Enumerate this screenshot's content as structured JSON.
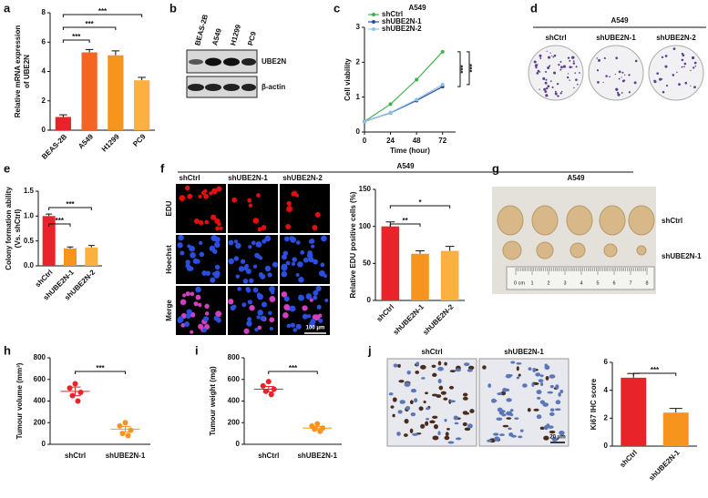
{
  "panel_labels": [
    "a",
    "b",
    "c",
    "d",
    "e",
    "f",
    "g",
    "h",
    "i",
    "j"
  ],
  "blot": {
    "lanes": [
      "BEAS-2B",
      "A549",
      "H1299",
      "PC9"
    ],
    "bands": [
      "UBE2N",
      "β-actin"
    ]
  },
  "colony": {
    "cell_line": "A549",
    "groups": [
      "shCtrl",
      "shUBE2N-1",
      "shUBE2N-2"
    ]
  },
  "edu": {
    "cell_line": "A549",
    "groups": [
      "shCtrl",
      "shUBE2N-1",
      "shUBE2N-2"
    ],
    "stains": [
      "EDU",
      "Hoechst",
      "Merge"
    ],
    "scale_bar": "100 μm"
  },
  "tumours": {
    "cell_line": "A549",
    "groups": [
      "shCtrl",
      "shUBE2N-1"
    ],
    "ruler": [
      "0 cm",
      "1",
      "2",
      "3",
      "4",
      "5",
      "6",
      "7",
      "8"
    ]
  },
  "ihc": {
    "groups": [
      "shCtrl",
      "shUBE2N-1"
    ],
    "scale_bar": "20 μm"
  },
  "chart_data": [
    {
      "type": "bar",
      "ylabel": [
        "Relative mRNA expression",
        "of UBE2N"
      ],
      "categories": [
        "BEAS-2B",
        "A549",
        "H1299",
        "PC9"
      ],
      "values": [
        0.9,
        5.3,
        5.1,
        3.4
      ],
      "errors": [
        0.15,
        0.2,
        0.3,
        0.2
      ],
      "colors": [
        "#e8232a",
        "#f26522",
        "#f7941d",
        "#fbb040"
      ],
      "ylim": [
        0,
        8
      ],
      "yticks": [
        0,
        2,
        4,
        6,
        8
      ],
      "annotations": [
        "***",
        "***",
        "***"
      ]
    },
    {
      "type": "line",
      "title": "A549",
      "xlabel": "Time (hour)",
      "ylabel": "Cell viability",
      "x": [
        0,
        24,
        48,
        72
      ],
      "series": [
        {
          "name": "shCtrl",
          "color": "#3cb44b",
          "values": [
            0.3,
            0.8,
            1.5,
            2.3
          ]
        },
        {
          "name": "shUBE2N-1",
          "color": "#2b4c9b",
          "values": [
            0.3,
            0.55,
            0.9,
            1.3
          ]
        },
        {
          "name": "shUBE2N-2",
          "color": "#8cc3e8",
          "values": [
            0.3,
            0.56,
            0.93,
            1.36
          ]
        }
      ],
      "xlim": [
        0,
        84
      ],
      "xticks": [
        0,
        24,
        48,
        72
      ],
      "ylim": [
        0,
        3
      ],
      "yticks": [
        0,
        1,
        2,
        3
      ],
      "annotations": [
        "***",
        "***"
      ]
    },
    {
      "type": "bar",
      "ylabel": [
        "Colony formation ability",
        "(Vs. shCtrl)"
      ],
      "categories": [
        "shCtrl",
        "shUBE2N-1",
        "shUBE2N-2"
      ],
      "values": [
        1.0,
        0.35,
        0.37
      ],
      "errors": [
        0.04,
        0.03,
        0.04
      ],
      "colors": [
        "#e8232a",
        "#f7941d",
        "#fbb040"
      ],
      "ylim": [
        0,
        1.5
      ],
      "yticks": [
        {
          "value": 0,
          "label": "0.0"
        },
        0.5,
        {
          "value": 1,
          "label": "1.0"
        },
        1.5
      ],
      "annotations": [
        "***",
        "***"
      ]
    },
    {
      "type": "bar",
      "ylabel": "Relative EDU positive cells (%)",
      "categories": [
        "shCtrl",
        "shUBE2N-1",
        "shUBE2N-2"
      ],
      "values": [
        100,
        63,
        67
      ],
      "errors": [
        6,
        4,
        6
      ],
      "colors": [
        "#e8232a",
        "#f7941d",
        "#fbb040"
      ],
      "ylim": [
        0,
        150
      ],
      "yticks": [
        0,
        50,
        100,
        150
      ],
      "annotations": [
        "*",
        "**"
      ]
    },
    {
      "type": "dot",
      "ylabel": "Tumour volume (mm³)",
      "categories": [
        "shCtrl",
        "shUBE2N-1"
      ],
      "points": [
        [
          560,
          520,
          480,
          450,
          400
        ],
        [
          200,
          170,
          130,
          100,
          80
        ]
      ],
      "means": [
        490,
        140
      ],
      "errors": [
        40,
        25
      ],
      "colors": [
        "#e8232a",
        "#f7941d"
      ],
      "ylim": [
        0,
        800
      ],
      "yticks": [
        0,
        200,
        400,
        600,
        800
      ],
      "annotations": [
        "***"
      ]
    },
    {
      "type": "dot",
      "ylabel": "Tumour weight (mg)",
      "categories": [
        "shCtrl",
        "shUBE2N-1"
      ],
      "points": [
        [
          580,
          540,
          510,
          490,
          460
        ],
        [
          190,
          170,
          150,
          140,
          120
        ]
      ],
      "means": [
        510,
        150
      ],
      "errors": [
        25,
        15
      ],
      "colors": [
        "#e8232a",
        "#f7941d"
      ],
      "ylim": [
        0,
        800
      ],
      "yticks": [
        0,
        200,
        400,
        600,
        800
      ],
      "annotations": [
        "***"
      ]
    },
    {
      "type": "bar",
      "ylabel": "Ki67 IHC score",
      "categories": [
        "shCtrl",
        "shUBE2N-1"
      ],
      "values": [
        4.9,
        2.4
      ],
      "errors": [
        0.3,
        0.3
      ],
      "colors": [
        "#e8232a",
        "#f7941d"
      ],
      "ylim": [
        0,
        6
      ],
      "yticks": [
        0,
        2,
        4,
        6
      ],
      "annotations": [
        "***"
      ]
    }
  ]
}
